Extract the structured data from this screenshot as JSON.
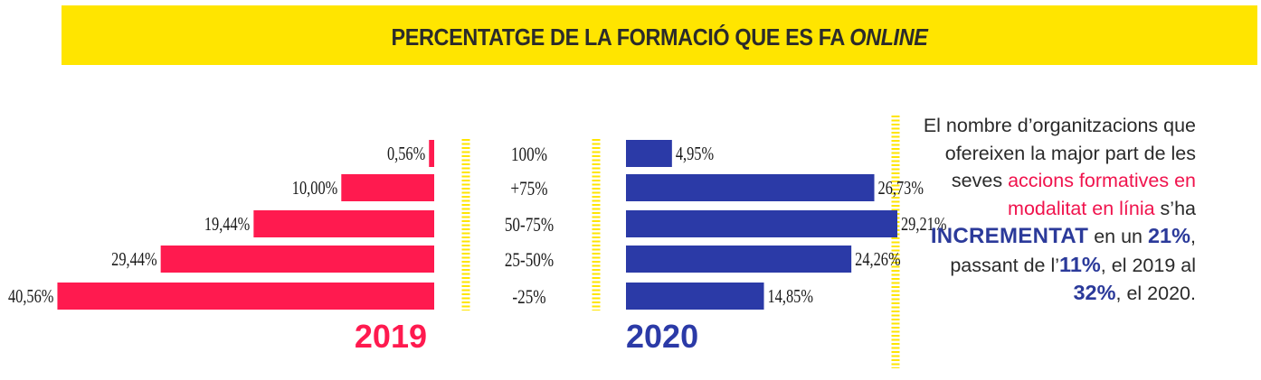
{
  "header": {
    "title_main": "PERCENTATGE DE LA FORMACIÓ QUE ES FA",
    "title_emphasis": "ONLINE",
    "banner_color": "#ffe500"
  },
  "chart_data": {
    "type": "bar",
    "orientation": "horizontal",
    "layout": "back-to-back",
    "categories": [
      "100%",
      "+75%",
      "50-75%",
      "25-50%",
      "-25%"
    ],
    "xlim": [
      0,
      45
    ],
    "series": [
      {
        "name": "2019",
        "color": "#ff1a4f",
        "values": [
          0.56,
          10.0,
          19.44,
          29.44,
          40.56
        ],
        "labels": [
          "0,56%",
          "10,00%",
          "19,44%",
          "29,44%",
          "40,56%"
        ]
      },
      {
        "name": "2020",
        "color": "#2b3aa7",
        "values": [
          4.95,
          26.73,
          29.21,
          24.26,
          14.85
        ],
        "labels": [
          "4,95%",
          "26,73%",
          "29,21%",
          "24,26%",
          "14,85%"
        ]
      }
    ],
    "separator_color": "#ffe500"
  },
  "sidebar": {
    "text_1": "El nombre d’organitzacions que ofereixen la major part de les seves",
    "text_highlight": "accions formatives en modalitat en línia",
    "text_2": " s’ha ",
    "text_strong": "INCREMENTAT",
    "text_3": " en un ",
    "pct_increase": "21%",
    "text_4": ", passant de l’",
    "pct_2019": "11%",
    "text_5": ", el 2019 al ",
    "pct_2020": "32%",
    "text_6": ", el 2020.",
    "highlight_color": "#f0134d",
    "accent_color": "#2b3a9a"
  }
}
